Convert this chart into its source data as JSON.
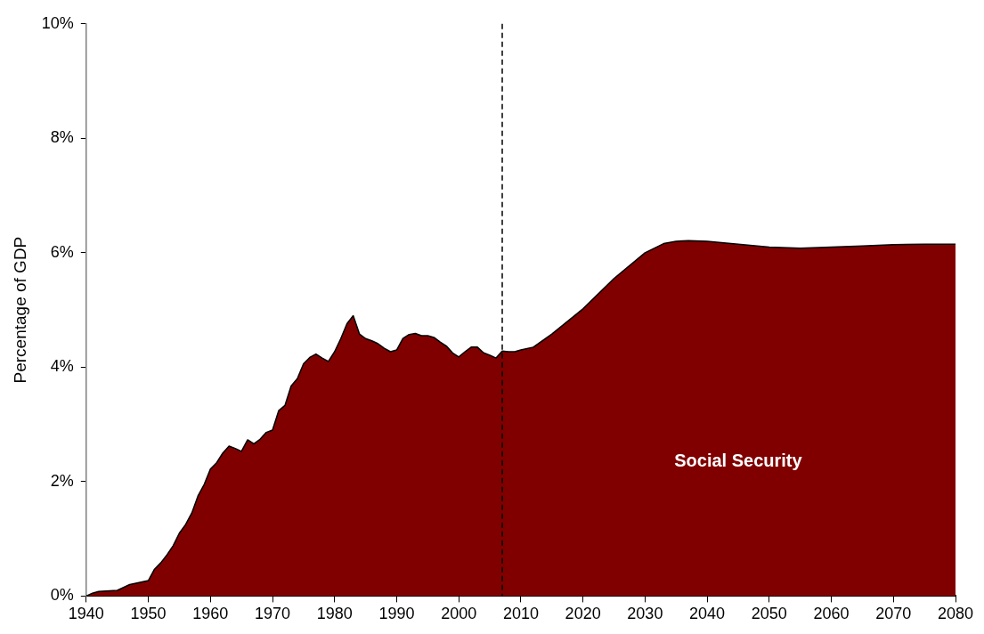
{
  "chart_data": {
    "type": "area",
    "ylabel": "Percentage of GDP",
    "x": [
      1940,
      1941,
      1942,
      1945,
      1947,
      1950,
      1951,
      1952,
      1953,
      1954,
      1955,
      1956,
      1957,
      1958,
      1959,
      1960,
      1961,
      1962,
      1963,
      1964,
      1965,
      1966,
      1967,
      1968,
      1969,
      1970,
      1971,
      1972,
      1973,
      1974,
      1975,
      1976,
      1977,
      1978,
      1979,
      1980,
      1981,
      1982,
      1983,
      1984,
      1985,
      1986,
      1987,
      1988,
      1989,
      1990,
      1991,
      1992,
      1993,
      1994,
      1995,
      1996,
      1997,
      1998,
      1999,
      2000,
      2001,
      2002,
      2003,
      2004,
      2005,
      2006,
      2007,
      2008,
      2009,
      2010,
      2012,
      2015,
      2020,
      2025,
      2030,
      2033,
      2035,
      2037,
      2040,
      2045,
      2050,
      2055,
      2060,
      2065,
      2070,
      2075,
      2080
    ],
    "series": [
      {
        "name": "Social Security",
        "color": "#800000",
        "values": [
          0,
          0.05,
          0.08,
          0.1,
          0.2,
          0.27,
          0.47,
          0.58,
          0.72,
          0.88,
          1.1,
          1.25,
          1.45,
          1.75,
          1.95,
          2.22,
          2.33,
          2.5,
          2.62,
          2.58,
          2.53,
          2.73,
          2.66,
          2.74,
          2.86,
          2.9,
          3.24,
          3.33,
          3.67,
          3.8,
          4.06,
          4.17,
          4.23,
          4.16,
          4.1,
          4.27,
          4.5,
          4.76,
          4.9,
          4.58,
          4.5,
          4.46,
          4.41,
          4.33,
          4.27,
          4.3,
          4.5,
          4.57,
          4.59,
          4.55,
          4.55,
          4.52,
          4.44,
          4.37,
          4.25,
          4.18,
          4.27,
          4.35,
          4.35,
          4.25,
          4.21,
          4.16,
          4.28,
          4.27,
          4.27,
          4.3,
          4.35,
          4.58,
          5.02,
          5.55,
          6.0,
          6.16,
          6.2,
          6.21,
          6.2,
          6.15,
          6.1,
          6.08,
          6.1,
          6.12,
          6.14,
          6.15,
          6.15
        ]
      }
    ],
    "xlim": [
      1940,
      2080
    ],
    "xticks": [
      1940,
      1950,
      1960,
      1970,
      1980,
      1990,
      2000,
      2010,
      2020,
      2030,
      2040,
      2050,
      2060,
      2070,
      2080
    ],
    "ylim": [
      0,
      10
    ],
    "yticks": [
      {
        "value": 0,
        "label": "0%"
      },
      {
        "value": 2,
        "label": "2%"
      },
      {
        "value": 4,
        "label": "4%"
      },
      {
        "value": 6,
        "label": "6%"
      },
      {
        "value": 8,
        "label": "8%"
      },
      {
        "value": 10,
        "label": "10%"
      }
    ],
    "ref_lines": [
      {
        "axis": "x",
        "value": 2007,
        "color": "#000000",
        "line_style": "dashed"
      }
    ],
    "legend": false,
    "marker": "none"
  }
}
